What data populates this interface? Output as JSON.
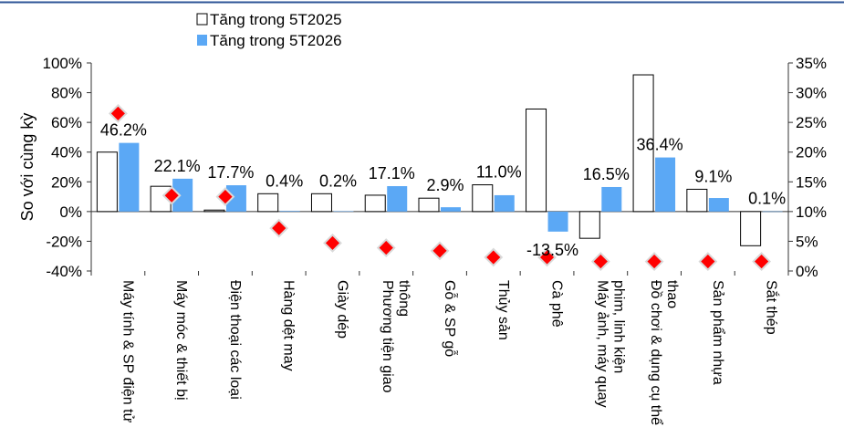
{
  "chart_data": {
    "type": "bar",
    "ylabel": "So với cùng kỳ",
    "categories": [
      "Máy tính & SP điện tử",
      "Máy móc & thiết bị",
      "Điện thoại các loại",
      "Hàng dệt may",
      "Giày dép",
      "Phương tiện giao thông",
      "Gỗ & SP gỗ",
      "Thủy sản",
      "Cà phê",
      "Máy ảnh, máy quay phim, linh kiện",
      "Đồ chơi & dụng cụ thể thao",
      "Sản phẩm nhựa",
      "Sắt thép"
    ],
    "category_label_lines": [
      [
        "Máy tính & SP điện tử"
      ],
      [
        "Máy móc & thiết bị"
      ],
      [
        "Điện thoại các loại"
      ],
      [
        "Hàng dệt may"
      ],
      [
        "Giày dép"
      ],
      [
        "Phương tiện giao",
        "thông"
      ],
      [
        "Gỗ & SP gỗ"
      ],
      [
        "Thủy sản"
      ],
      [
        "Cà phê"
      ],
      [
        "Máy ảnh, máy quay",
        "phim, linh kiện"
      ],
      [
        "Đồ chơi & dụng cụ thể",
        "thao"
      ],
      [
        "Sản phẩm nhựa"
      ],
      [
        "Sắt thép"
      ]
    ],
    "series": [
      {
        "name": "Tăng trong 5T2025",
        "axis": "left",
        "style": "outline",
        "values": [
          40,
          17,
          1,
          12,
          12,
          11,
          9,
          18,
          69,
          -18,
          92,
          15,
          -23
        ]
      },
      {
        "name": "Tăng trong 5T2026",
        "axis": "left",
        "style": "filled",
        "color": "#5ba8f5",
        "values": [
          46.2,
          22.1,
          17.7,
          0.4,
          0.2,
          17.1,
          2.9,
          11.0,
          -13.5,
          16.5,
          36.4,
          9.1,
          0.1
        ]
      },
      {
        "axis": "right",
        "style": "diamond",
        "color": "#ff0000",
        "values": [
          26.5,
          12.7,
          12.5,
          7.2,
          4.7,
          3.9,
          3.4,
          2.3,
          2.3,
          1.6,
          1.6,
          1.6,
          1.6
        ]
      }
    ],
    "data_labels": [
      "46.2%",
      "22.1%",
      "17.7%",
      "0.4%",
      "0.2%",
      "17.1%",
      "2.9%",
      "11.0%",
      "-13.5%",
      "16.5%",
      "36.4%",
      "9.1%",
      "0.1%"
    ],
    "y_left": {
      "ylim": [
        -40,
        100
      ],
      "ticks": [
        -40,
        -20,
        0,
        20,
        40,
        60,
        80,
        100
      ],
      "tick_labels": [
        "-40%",
        "-20%",
        "0%",
        "20%",
        "40%",
        "60%",
        "80%",
        "100%"
      ]
    },
    "y_right": {
      "ylim": [
        0,
        35
      ],
      "ticks": [
        0,
        5,
        10,
        15,
        20,
        25,
        30,
        35
      ],
      "tick_labels": [
        "0%",
        "5%",
        "10%",
        "15%",
        "20%",
        "25%",
        "30%",
        "35%"
      ]
    },
    "legend": {
      "position": "top-left",
      "entries": [
        "Tăng trong 5T2025",
        "Tăng trong 5T2026"
      ]
    },
    "grid": false,
    "top_rule_color": "#2e5597"
  }
}
